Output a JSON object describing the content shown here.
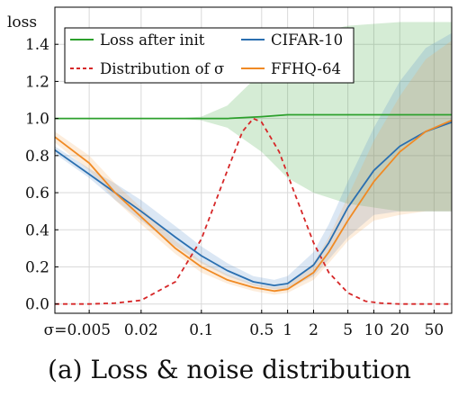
{
  "chart_data": {
    "type": "line",
    "caption": "(a) Loss & noise distribution",
    "ylabel": "loss",
    "x_scale": "log",
    "xlim": [
      0.002,
      80
    ],
    "ylim": [
      -0.05,
      1.6
    ],
    "grid": true,
    "legend_placement": "top",
    "x_ticks": [
      {
        "value": 0.005,
        "label": "σ=0.005"
      },
      {
        "value": 0.02,
        "label": "0.02"
      },
      {
        "value": 0.1,
        "label": "0.1"
      },
      {
        "value": 0.5,
        "label": "0.5"
      },
      {
        "value": 1,
        "label": "1"
      },
      {
        "value": 2,
        "label": "2"
      },
      {
        "value": 5,
        "label": "5"
      },
      {
        "value": 10,
        "label": "10"
      },
      {
        "value": 20,
        "label": "20"
      },
      {
        "value": 50,
        "label": "50"
      }
    ],
    "y_ticks": [
      {
        "value": 0.0,
        "label": "0.0"
      },
      {
        "value": 0.2,
        "label": "0.2"
      },
      {
        "value": 0.4,
        "label": "0.4"
      },
      {
        "value": 0.6,
        "label": "0.6"
      },
      {
        "value": 0.8,
        "label": "0.8"
      },
      {
        "value": 1.0,
        "label": "1.0"
      },
      {
        "value": 1.2,
        "label": "1.2"
      },
      {
        "value": 1.4,
        "label": "1.4"
      }
    ],
    "series": [
      {
        "name": "Loss after init",
        "style": "solid",
        "color": "#2ca02c",
        "band_color": "#2ca02c",
        "x": [
          0.002,
          0.005,
          0.02,
          0.05,
          0.1,
          0.2,
          0.5,
          1,
          2,
          5,
          10,
          20,
          50,
          80
        ],
        "y": [
          1.0,
          1.0,
          1.0,
          1.0,
          1.0,
          1.0,
          1.01,
          1.02,
          1.02,
          1.02,
          1.02,
          1.02,
          1.02,
          1.02
        ],
        "band_low": [
          1.0,
          1.0,
          1.0,
          1.0,
          0.99,
          0.95,
          0.82,
          0.68,
          0.6,
          0.54,
          0.52,
          0.5,
          0.5,
          0.5
        ],
        "band_high": [
          1.0,
          1.0,
          1.0,
          1.0,
          1.01,
          1.07,
          1.25,
          1.38,
          1.46,
          1.5,
          1.51,
          1.52,
          1.52,
          1.52
        ]
      },
      {
        "name": "Distribution of σ",
        "style": "dashed",
        "color": "#d62728",
        "x": [
          0.002,
          0.005,
          0.01,
          0.02,
          0.05,
          0.1,
          0.2,
          0.3,
          0.4,
          0.5,
          0.8,
          1.2,
          2,
          3,
          5,
          8,
          12,
          20,
          40,
          80
        ],
        "y": [
          0.0,
          0.0,
          0.005,
          0.02,
          0.12,
          0.35,
          0.72,
          0.93,
          1.0,
          0.98,
          0.82,
          0.6,
          0.33,
          0.17,
          0.06,
          0.015,
          0.005,
          0.0,
          0.0,
          0.0
        ]
      },
      {
        "name": "CIFAR-10",
        "style": "solid",
        "color": "#2a6fb0",
        "band_color": "#4a86c8",
        "x": [
          0.002,
          0.005,
          0.01,
          0.02,
          0.05,
          0.1,
          0.2,
          0.4,
          0.7,
          1,
          2,
          3,
          5,
          10,
          20,
          40,
          80
        ],
        "y": [
          0.83,
          0.7,
          0.6,
          0.5,
          0.36,
          0.26,
          0.18,
          0.12,
          0.1,
          0.11,
          0.21,
          0.33,
          0.52,
          0.72,
          0.85,
          0.93,
          0.98
        ],
        "band_low": [
          0.81,
          0.68,
          0.56,
          0.45,
          0.31,
          0.22,
          0.15,
          0.1,
          0.08,
          0.08,
          0.15,
          0.24,
          0.36,
          0.48,
          0.5,
          0.5,
          0.5
        ],
        "band_high": [
          0.85,
          0.73,
          0.65,
          0.56,
          0.42,
          0.31,
          0.22,
          0.15,
          0.13,
          0.15,
          0.28,
          0.43,
          0.66,
          0.95,
          1.2,
          1.38,
          1.46
        ]
      },
      {
        "name": "FFHQ-64",
        "style": "solid",
        "color": "#f08a24",
        "band_color": "#f5a650",
        "x": [
          0.002,
          0.005,
          0.01,
          0.02,
          0.05,
          0.1,
          0.2,
          0.4,
          0.7,
          1,
          2,
          3,
          5,
          10,
          20,
          40,
          80
        ],
        "y": [
          0.9,
          0.76,
          0.6,
          0.47,
          0.3,
          0.2,
          0.13,
          0.09,
          0.07,
          0.08,
          0.17,
          0.28,
          0.45,
          0.66,
          0.82,
          0.93,
          0.99
        ],
        "band_low": [
          0.87,
          0.72,
          0.56,
          0.43,
          0.27,
          0.17,
          0.11,
          0.07,
          0.05,
          0.06,
          0.13,
          0.22,
          0.34,
          0.45,
          0.48,
          0.5,
          0.5
        ],
        "band_high": [
          0.93,
          0.8,
          0.65,
          0.52,
          0.34,
          0.23,
          0.16,
          0.11,
          0.09,
          0.1,
          0.22,
          0.36,
          0.58,
          0.88,
          1.12,
          1.32,
          1.42
        ]
      }
    ]
  }
}
